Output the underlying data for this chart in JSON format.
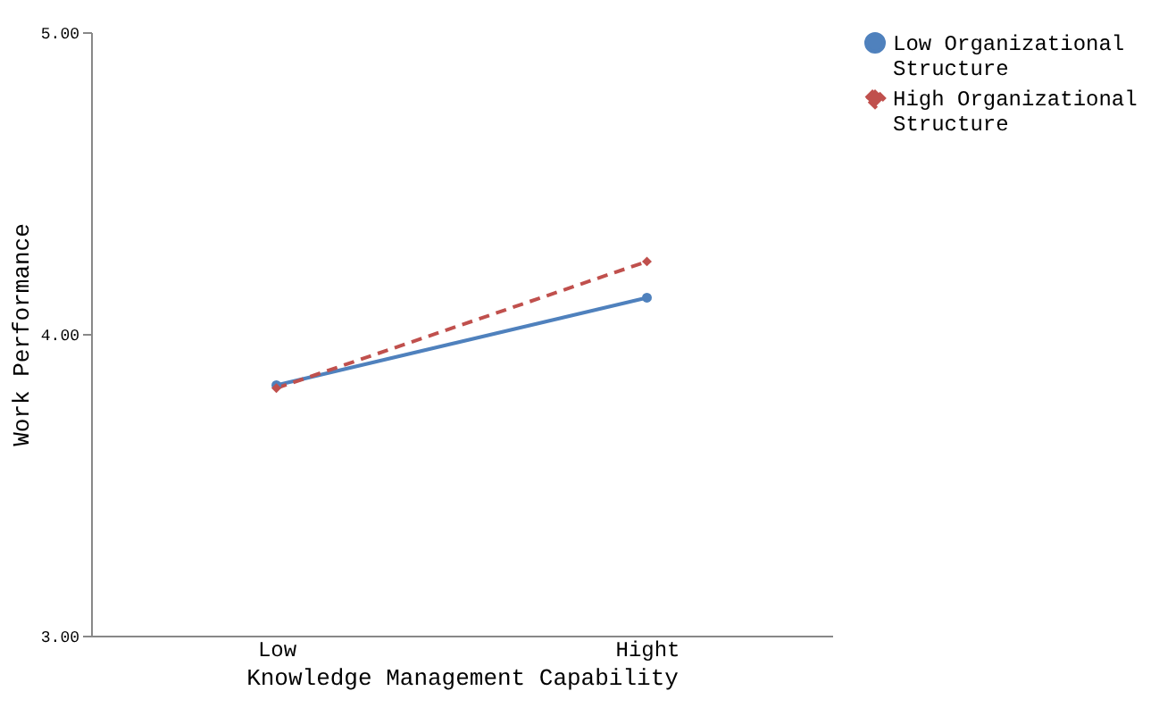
{
  "chart_data": {
    "type": "line",
    "xlabel": "Knowledge Management Capability",
    "ylabel": "Work Performance",
    "categories": [
      "Low",
      "Hight"
    ],
    "series": [
      {
        "name": "Low Organizational Structure",
        "color": "#4f81bd",
        "values": [
          3.83,
          4.12
        ],
        "marker": "circle",
        "line_style": "solid"
      },
      {
        "name": "High Organizational Structure",
        "color": "#c0504d",
        "values": [
          3.82,
          4.24
        ],
        "marker": "diamond",
        "line_style": "dashed"
      }
    ],
    "ylim": [
      3,
      5
    ],
    "yticks": [
      {
        "value": 3,
        "label": "3.00"
      },
      {
        "value": 4,
        "label": "4.00"
      },
      {
        "value": 5,
        "label": "5.00"
      }
    ],
    "grid": false,
    "legend": "right"
  }
}
